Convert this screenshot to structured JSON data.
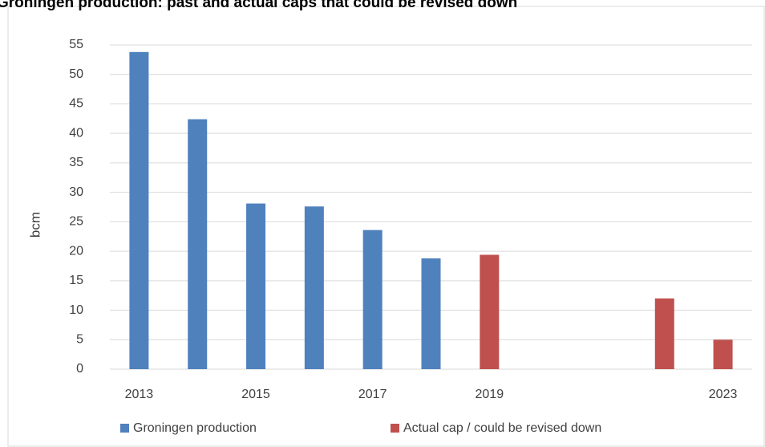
{
  "chart_data": {
    "type": "bar",
    "title": "Groningen production: past and actual caps that could be revised down",
    "y_label": "bcm",
    "categories": [
      "2013",
      null,
      "2015",
      null,
      "2017",
      null,
      "2019",
      null,
      null,
      null,
      "2023"
    ],
    "series": [
      {
        "name": "Groningen production",
        "color": "#4f81bd",
        "values": [
          53.8,
          42.4,
          28.1,
          27.6,
          23.6,
          18.8,
          null,
          null,
          null,
          null,
          null
        ]
      },
      {
        "name": "Actual cap / could be revised down",
        "color": "#c0504d",
        "values": [
          null,
          null,
          null,
          null,
          null,
          null,
          19.4,
          null,
          null,
          12,
          5
        ]
      }
    ],
    "ylim": [
      0,
      55
    ],
    "yticks": [
      0,
      5,
      10,
      15,
      20,
      25,
      30,
      35,
      40,
      45,
      50,
      55
    ],
    "grid": true,
    "legend": "bottom"
  }
}
